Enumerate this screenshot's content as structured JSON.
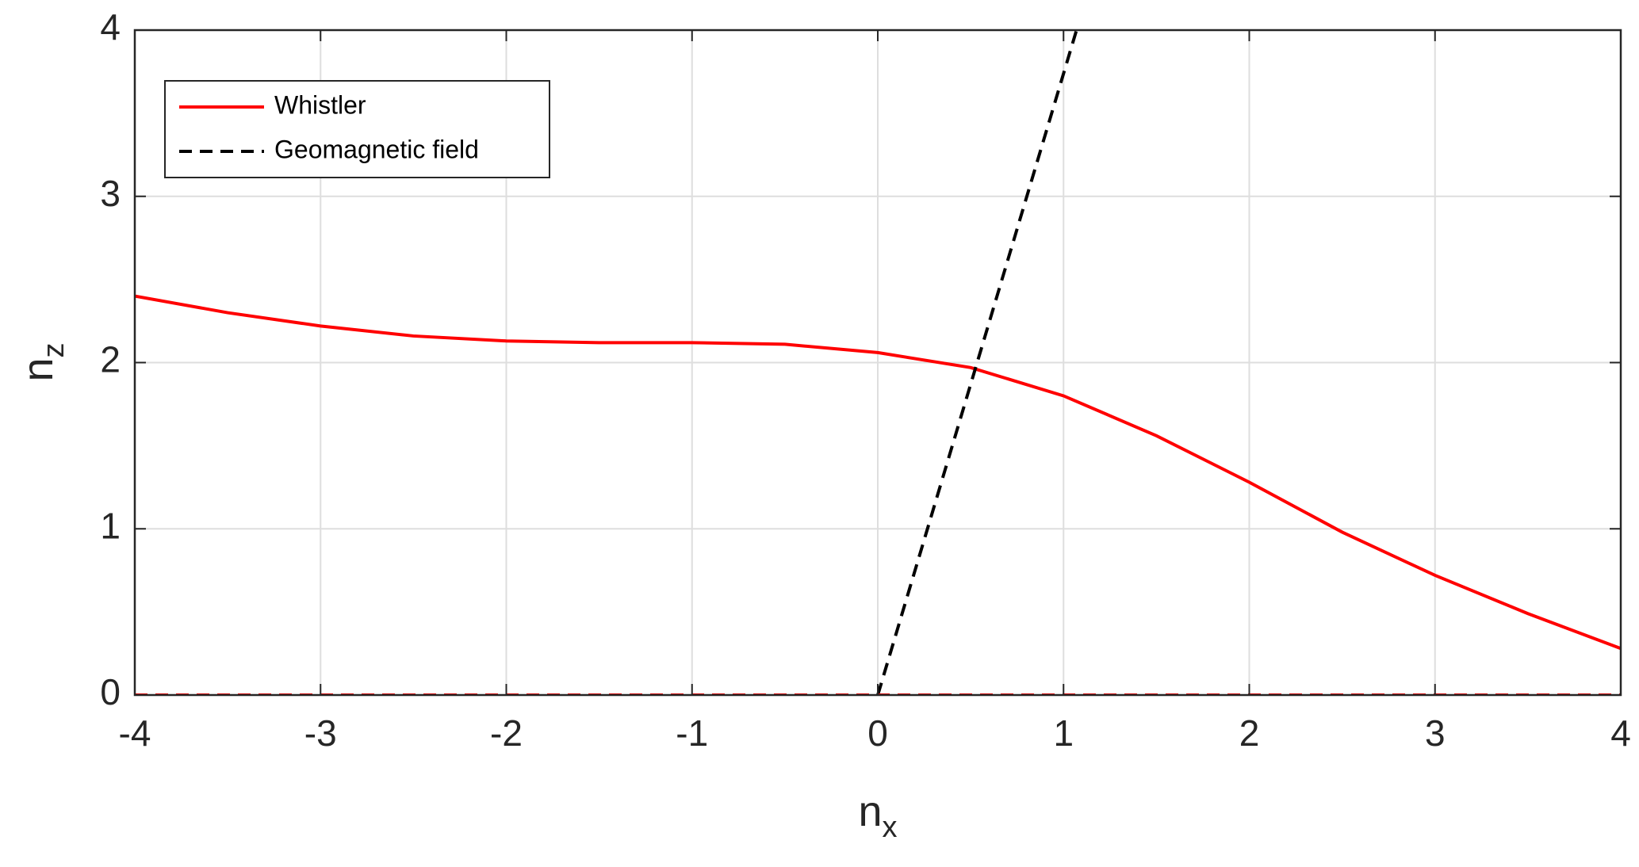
{
  "chart_data": {
    "type": "line",
    "xlabel": {
      "base": "n",
      "sub": "x"
    },
    "ylabel": {
      "base": "n",
      "sub": "z"
    },
    "xlim": [
      -4,
      4
    ],
    "xticks": [
      -4,
      -3,
      -2,
      -1,
      0,
      1,
      2,
      3,
      4
    ],
    "ylim": [
      0,
      4
    ],
    "yticks": [
      0,
      1,
      2,
      3,
      4
    ],
    "grid": true,
    "legend": "northwest",
    "series": [
      {
        "name": "Whistler",
        "color": "#ff0000",
        "dash": "solid",
        "x": [
          -4,
          -3.5,
          -3,
          -2.5,
          -2,
          -1.5,
          -1,
          -0.5,
          0,
          0.5,
          1,
          1.5,
          2,
          2.5,
          3,
          3.5,
          4
        ],
        "values": [
          2.4,
          2.3,
          2.22,
          2.16,
          2.13,
          2.12,
          2.12,
          2.11,
          2.06,
          1.97,
          1.8,
          1.56,
          1.28,
          0.98,
          0.72,
          0.49,
          0.28
        ]
      },
      {
        "name": "Geomagnetic field",
        "color": "#000000",
        "dash": "dashed",
        "x": [
          0,
          1.07
        ],
        "values": [
          0,
          4
        ]
      },
      {
        "color": "#ff0000",
        "dash": "dashed",
        "x": [
          -4,
          4
        ],
        "values": [
          0,
          0
        ]
      }
    ]
  }
}
